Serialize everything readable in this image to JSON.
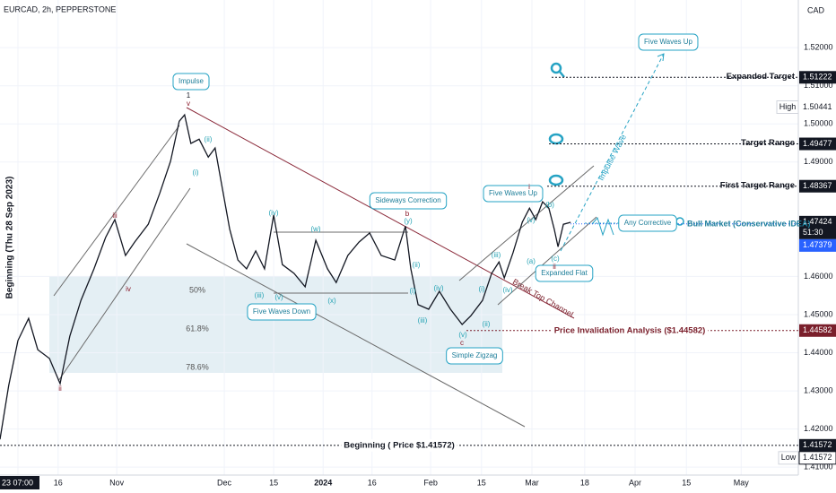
{
  "chart_data": {
    "type": "line",
    "title": "EURCAD, 2h, PEPPERSTONE",
    "currency": "CAD",
    "y_axis_label": "Beginning (Thu 28 Sep 2023)",
    "color": "#131722",
    "x": [
      -3.7,
      -1.9,
      0,
      2.2,
      4.1,
      6.5,
      8.7,
      10.7,
      13.0,
      15.7,
      18.1,
      20.0,
      22.2,
      24.1,
      26.9,
      29.3,
      31.5,
      33.3,
      34.4,
      35.7,
      37.4,
      39.3,
      40.7,
      42.2,
      43.7,
      45.4,
      47.2,
      49.1,
      50.9,
      52.8,
      54.6,
      57.0,
      59.3,
      61.5,
      63.9,
      65.7,
      68.1,
      70.4,
      72.6,
      75.0,
      77.8,
      80.0,
      81.1,
      82.6,
      84.8,
      87.0,
      89.3,
      91.7,
      93.5,
      95.9,
      97.8,
      99.3,
      100.4,
      102.2,
      104.1,
      105.6,
      106.9,
      108.3,
      109.6,
      110.7,
      111.5,
      112.6,
      114.1
    ],
    "values": [
      1.4173,
      1.4314,
      1.4432,
      1.449,
      1.4408,
      1.4385,
      1.4319,
      1.4443,
      1.4537,
      1.462,
      1.4702,
      1.4749,
      1.4655,
      1.469,
      1.4737,
      1.4819,
      1.4902,
      1.5007,
      1.5024,
      1.4949,
      1.496,
      1.4913,
      1.4937,
      1.4831,
      1.4725,
      1.4643,
      1.462,
      1.4667,
      1.462,
      1.4761,
      1.4631,
      1.4608,
      1.4573,
      1.4695,
      1.462,
      1.4584,
      1.4655,
      1.469,
      1.4714,
      1.4655,
      1.4643,
      1.4732,
      1.462,
      1.4526,
      1.4514,
      1.4561,
      1.4514,
      1.4474,
      1.4497,
      1.4537,
      1.4608,
      1.4638,
      1.4596,
      1.4662,
      1.4742,
      1.4779,
      1.4749,
      1.4796,
      1.4779,
      1.4725,
      1.4678,
      1.4737,
      1.4742
    ],
    "xlim": [
      -3.7,
      161.1
    ],
    "ylim": [
      1.4098,
      1.5325
    ],
    "grid": true,
    "xticks": [
      {
        "value": 0,
        "label": "23 07:00"
      },
      {
        "value": 8.3,
        "label": "16"
      },
      {
        "value": 20.4,
        "label": "Nov"
      },
      {
        "value": 42.6,
        "label": "Dec"
      },
      {
        "value": 52.8,
        "label": "15"
      },
      {
        "value": 63,
        "label": "2024"
      },
      {
        "value": 73.1,
        "label": "16"
      },
      {
        "value": 85.2,
        "label": "Feb"
      },
      {
        "value": 95.7,
        "label": "15"
      },
      {
        "value": 106.1,
        "label": "Mar"
      },
      {
        "value": 117,
        "label": "18"
      },
      {
        "value": 127.4,
        "label": "Apr"
      },
      {
        "value": 138,
        "label": "15"
      },
      {
        "value": 149.3,
        "label": "May"
      }
    ],
    "yticks": [
      {
        "value": 1.52,
        "label": "1.52000"
      },
      {
        "value": 1.51,
        "label": "1.51000"
      },
      {
        "value": 1.5,
        "label": "1.50000"
      },
      {
        "value": 1.49,
        "label": "1.49000"
      },
      {
        "value": 1.46,
        "label": "1.46000"
      },
      {
        "value": 1.45,
        "label": "1.45000"
      },
      {
        "value": 1.44,
        "label": "1.44000"
      },
      {
        "value": 1.43,
        "label": "1.43000"
      },
      {
        "value": 1.42,
        "label": "1.42000"
      },
      {
        "value": 1.41,
        "label": "1.41000"
      }
    ],
    "levels": [
      {
        "name": "Expanded Target",
        "value": 1.51222,
        "color": "#131722"
      },
      {
        "name": "Target Range",
        "value": 1.49477,
        "color": "#131722"
      },
      {
        "name": "First Target Range",
        "value": 1.48367,
        "color": "#131722"
      },
      {
        "name": "Price Invalidation Analysis ($1.44582)",
        "value": 1.44582,
        "color": "#7a1f2b"
      },
      {
        "name": "Beginning ( Price $1.41572)",
        "value": 1.41572,
        "color": "#131722"
      }
    ],
    "last_price": 1.47424,
    "countdown": "51:30",
    "bid_price": 1.47379,
    "high": {
      "label": "High",
      "value": 1.50441
    },
    "low": {
      "label": "Low",
      "value": 1.41572
    },
    "fib_labels": [
      "50%",
      "61.8%",
      "78.6%"
    ],
    "callouts": [
      "Impulse",
      "Sideways Correction",
      "Five Waves Up",
      "Five Waves Up",
      "Five Waves Down",
      "Simple Zigzag",
      "Expanded Flat",
      "Any Corrective"
    ],
    "notes": [
      "Bull Market (Conservative IDEA)",
      "Break Top Channel",
      "Impulse Wave"
    ],
    "wave_labels": [
      "1",
      "v",
      "iii",
      "iv",
      "ii",
      "(i)",
      "(ii)",
      "(iii)",
      "(iv)",
      "(v)",
      "(w)",
      "(x)",
      "(y)",
      "b",
      "(i)",
      "(ii)",
      "(iii)",
      "(iv)",
      "(v)",
      "c",
      "(i)",
      "(ii)",
      "(iii)",
      "(iv)",
      "i",
      "(v)",
      "(a)",
      "(b)",
      "(c)",
      "ii"
    ]
  }
}
